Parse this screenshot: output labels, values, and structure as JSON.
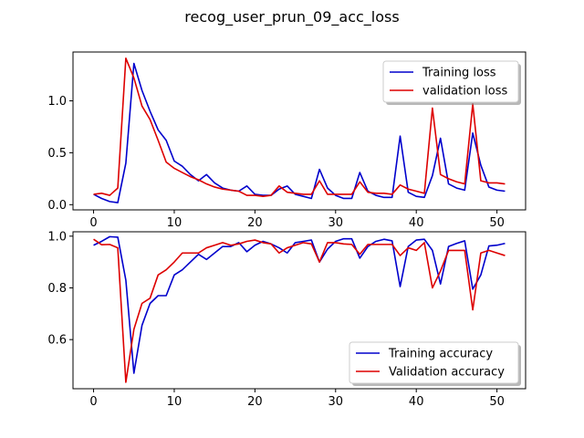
{
  "figure": {
    "title": "recog_user_prun_09_acc_loss"
  },
  "chart_data": [
    {
      "type": "line",
      "title": "",
      "xlabel": "",
      "ylabel": "",
      "xlim": [
        -2.55,
        53.55
      ],
      "ylim": [
        -0.05,
        1.47
      ],
      "xticks": [
        0,
        10,
        20,
        30,
        40,
        50
      ],
      "yticks": [
        0.0,
        0.5,
        1.0
      ],
      "ytick_labels": [
        "0.0",
        "0.5",
        "1.0"
      ],
      "grid": false,
      "legend_position": "top-right",
      "x": [
        0,
        1,
        2,
        3,
        4,
        5,
        6,
        7,
        8,
        9,
        10,
        11,
        12,
        13,
        14,
        15,
        16,
        17,
        18,
        19,
        20,
        21,
        22,
        23,
        24,
        25,
        26,
        27,
        28,
        29,
        30,
        31,
        32,
        33,
        34,
        35,
        36,
        37,
        38,
        39,
        40,
        41,
        42,
        43,
        44,
        45,
        46,
        47,
        48,
        49,
        50,
        51
      ],
      "series": [
        {
          "name": "Training loss",
          "color": "#0000cc",
          "values": [
            0.1,
            0.06,
            0.03,
            0.02,
            0.4,
            1.36,
            1.1,
            0.9,
            0.72,
            0.62,
            0.42,
            0.37,
            0.29,
            0.23,
            0.29,
            0.21,
            0.16,
            0.14,
            0.13,
            0.18,
            0.1,
            0.09,
            0.09,
            0.15,
            0.18,
            0.1,
            0.08,
            0.06,
            0.34,
            0.16,
            0.09,
            0.06,
            0.06,
            0.31,
            0.13,
            0.09,
            0.07,
            0.07,
            0.66,
            0.12,
            0.08,
            0.07,
            0.28,
            0.64,
            0.2,
            0.16,
            0.14,
            0.69,
            0.38,
            0.17,
            0.14,
            0.13
          ]
        },
        {
          "name": "validation loss",
          "color": "#dd0000",
          "values": [
            0.1,
            0.11,
            0.09,
            0.16,
            1.41,
            1.22,
            0.95,
            0.82,
            0.62,
            0.41,
            0.35,
            0.31,
            0.27,
            0.24,
            0.2,
            0.17,
            0.15,
            0.14,
            0.13,
            0.09,
            0.09,
            0.08,
            0.09,
            0.18,
            0.12,
            0.11,
            0.1,
            0.1,
            0.23,
            0.1,
            0.1,
            0.1,
            0.1,
            0.22,
            0.12,
            0.11,
            0.11,
            0.1,
            0.19,
            0.15,
            0.13,
            0.11,
            0.93,
            0.29,
            0.25,
            0.22,
            0.2,
            0.97,
            0.23,
            0.21,
            0.21,
            0.2
          ]
        }
      ]
    },
    {
      "type": "line",
      "title": "",
      "xlabel": "",
      "ylabel": "",
      "xlim": [
        -2.55,
        53.55
      ],
      "ylim": [
        0.41,
        1.017
      ],
      "xticks": [
        0,
        10,
        20,
        30,
        40,
        50
      ],
      "yticks": [
        0.6,
        0.8,
        1.0
      ],
      "ytick_labels": [
        "0.6",
        "0.8",
        "1.0"
      ],
      "grid": false,
      "legend_position": "bottom-right",
      "x": [
        0,
        1,
        2,
        3,
        4,
        5,
        6,
        7,
        8,
        9,
        10,
        11,
        12,
        13,
        14,
        15,
        16,
        17,
        18,
        19,
        20,
        21,
        22,
        23,
        24,
        25,
        26,
        27,
        28,
        29,
        30,
        31,
        32,
        33,
        34,
        35,
        36,
        37,
        38,
        39,
        40,
        41,
        42,
        43,
        44,
        45,
        46,
        47,
        48,
        49,
        50,
        51
      ],
      "series": [
        {
          "name": "Training accuracy",
          "color": "#0000cc",
          "values": [
            0.965,
            0.98,
            0.998,
            0.996,
            0.83,
            0.47,
            0.655,
            0.74,
            0.77,
            0.77,
            0.85,
            0.87,
            0.9,
            0.93,
            0.91,
            0.935,
            0.96,
            0.96,
            0.975,
            0.94,
            0.965,
            0.98,
            0.97,
            0.955,
            0.935,
            0.975,
            0.98,
            0.985,
            0.9,
            0.95,
            0.98,
            0.99,
            0.99,
            0.915,
            0.96,
            0.98,
            0.988,
            0.982,
            0.805,
            0.96,
            0.985,
            0.988,
            0.945,
            0.815,
            0.96,
            0.972,
            0.982,
            0.795,
            0.85,
            0.962,
            0.965,
            0.972
          ]
        },
        {
          "name": "Validation accuracy",
          "color": "#dd0000",
          "values": [
            0.988,
            0.967,
            0.968,
            0.955,
            0.435,
            0.64,
            0.74,
            0.76,
            0.85,
            0.87,
            0.9,
            0.935,
            0.935,
            0.935,
            0.955,
            0.965,
            0.975,
            0.965,
            0.97,
            0.98,
            0.985,
            0.975,
            0.97,
            0.935,
            0.955,
            0.965,
            0.975,
            0.97,
            0.9,
            0.975,
            0.975,
            0.97,
            0.968,
            0.93,
            0.968,
            0.968,
            0.968,
            0.968,
            0.925,
            0.955,
            0.945,
            0.975,
            0.8,
            0.865,
            0.945,
            0.945,
            0.945,
            0.715,
            0.935,
            0.945,
            0.935,
            0.925
          ]
        }
      ]
    }
  ]
}
